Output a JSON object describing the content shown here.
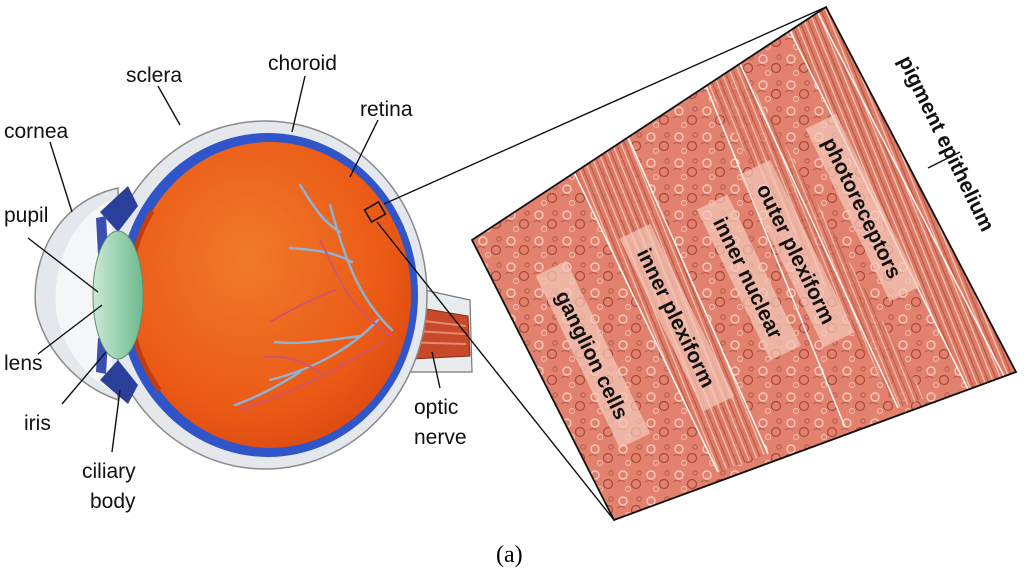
{
  "caption": "(a)",
  "eye": {
    "labels": {
      "sclera": "sclera",
      "choroid": "choroid",
      "retina": "retina",
      "cornea": "cornea",
      "pupil": "pupil",
      "lens": "lens",
      "iris": "iris",
      "ciliary_line1": "ciliary",
      "ciliary_line2": "body",
      "optic_line1": "optic",
      "optic_line2": "nerve"
    }
  },
  "retina_section": {
    "layers": {
      "ganglion": "ganglion cells",
      "inner_plexiform": "inner plexiform",
      "inner_nuclear": "inner nuclear",
      "outer_plexiform": "outer plexiform",
      "photoreceptors": "photoreceptors",
      "pigment_epithelium": "pigment epithelium"
    }
  },
  "colors": {
    "eye_interior": "#ef6a1a",
    "choroid": "#2f55c8",
    "sclera": "#e3e6ea",
    "lens": "#9fd3b3",
    "tissue": "#e4816d",
    "vessel_blue": "#8ab4d9",
    "vessel_red": "#d2546a"
  }
}
